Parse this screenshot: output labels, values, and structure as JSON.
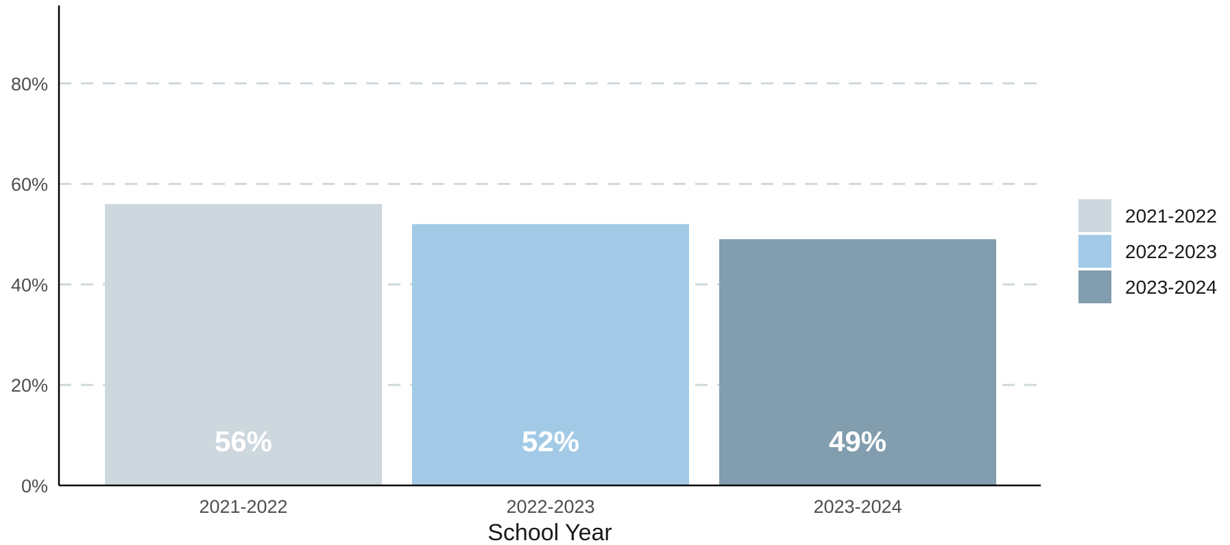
{
  "chart_data": {
    "type": "bar",
    "xlabel": "School Year",
    "ylabel": "",
    "ylim": [
      0,
      95
    ],
    "y_ticks": [
      0,
      20,
      40,
      60,
      80
    ],
    "y_tick_labels": [
      "0%",
      "20%",
      "40%",
      "60%",
      "80%"
    ],
    "grid": "horizontal dashed",
    "categories": [
      "2021-2022",
      "2022-2023",
      "2023-2024"
    ],
    "values": [
      56,
      52,
      49
    ],
    "data_labels": [
      "56%",
      "52%",
      "49%"
    ],
    "colors": [
      "#cdd7de",
      "#a2cae7",
      "#819dae"
    ],
    "legend": {
      "position": "right",
      "entries": [
        "2021-2022",
        "2022-2023",
        "2023-2024"
      ]
    },
    "grid_color": "#cfd8dc"
  }
}
